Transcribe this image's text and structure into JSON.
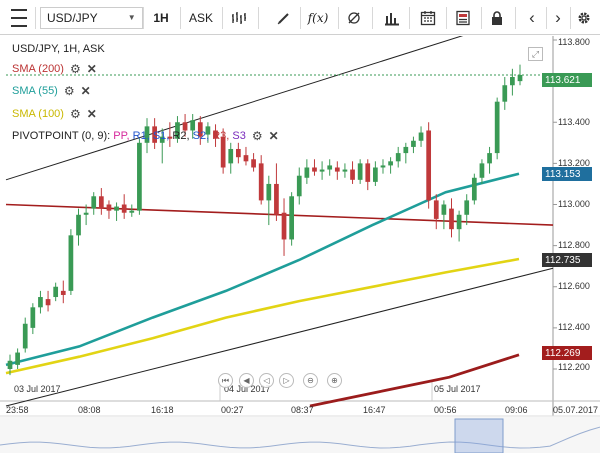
{
  "toolbar": {
    "symbol": "USD/JPY",
    "timeframe": "1H",
    "price_side": "ASK",
    "fx_label": "f(x)"
  },
  "legend": {
    "header": "USD/JPY, 1H, ASK",
    "sma200": "SMA (200)",
    "sma55": "SMA (55)",
    "sma100": "SMA (100)",
    "pivot_prefix": "PIVOTPOINT (0, 9):",
    "pivot_pp": "PP,",
    "pivot_r1": "R1,",
    "pivot_s1": "S1,",
    "pivot_r2": "R2,",
    "pivot_s2": "S2,",
    "pivot_r3": "R3,",
    "pivot_s3": "S3"
  },
  "y_axis": {
    "ticks": [
      "113.800",
      "113.400",
      "113.200",
      "113.000",
      "112.800",
      "112.600",
      "112.400",
      "112.200"
    ]
  },
  "price_tags": {
    "current": "113.621",
    "sma55": "113.153",
    "sma100": "112.735",
    "sma200": "112.269"
  },
  "x_axis": {
    "ticks": [
      "23:58",
      "08:08",
      "16:18",
      "00:27",
      "08:37",
      "16:47",
      "00:56",
      "09:06",
      "05.07.2017"
    ]
  },
  "day_labels": [
    "03 Jul 2017",
    "04 Jul 2017",
    "05 Jul 2017"
  ],
  "colors": {
    "bull": "#3a9a55",
    "bear": "#c0393b",
    "sma200": "#9b1c1c",
    "sma55": "#1f9e9a",
    "sma100": "#e2d414",
    "trendline": "#222222",
    "pivot_line": "#a31d1d",
    "current_tag": "#3a9a55",
    "sma55_tag": "#1f6f9e",
    "sma100_tag": "#333333",
    "sma200_tag": "#a31d1d",
    "pp": "#d6279c",
    "r1": "#2255cc",
    "s1": "#2255cc",
    "r3": "#c0393b",
    "s3": "#7a2bbd"
  },
  "chart_data": {
    "type": "candlestick",
    "instrument": "USD/JPY",
    "interval": "1H",
    "ylim": [
      112.17,
      113.82
    ],
    "candles": [
      {
        "o": 112.2,
        "h": 112.27,
        "l": 112.17,
        "c": 112.24
      },
      {
        "o": 112.22,
        "h": 112.3,
        "l": 112.2,
        "c": 112.28
      },
      {
        "o": 112.3,
        "h": 112.45,
        "l": 112.28,
        "c": 112.42
      },
      {
        "o": 112.4,
        "h": 112.52,
        "l": 112.37,
        "c": 112.5
      },
      {
        "o": 112.5,
        "h": 112.58,
        "l": 112.47,
        "c": 112.55
      },
      {
        "o": 112.54,
        "h": 112.58,
        "l": 112.48,
        "c": 112.51
      },
      {
        "o": 112.55,
        "h": 112.62,
        "l": 112.53,
        "c": 112.6
      },
      {
        "o": 112.58,
        "h": 112.63,
        "l": 112.52,
        "c": 112.56
      },
      {
        "o": 112.58,
        "h": 112.88,
        "l": 112.56,
        "c": 112.85
      },
      {
        "o": 112.85,
        "h": 112.98,
        "l": 112.8,
        "c": 112.95
      },
      {
        "o": 112.95,
        "h": 113.0,
        "l": 112.9,
        "c": 112.96
      },
      {
        "o": 112.98,
        "h": 113.06,
        "l": 112.95,
        "c": 113.04
      },
      {
        "o": 113.04,
        "h": 113.08,
        "l": 112.95,
        "c": 112.98
      },
      {
        "o": 113.0,
        "h": 113.02,
        "l": 112.93,
        "c": 112.97
      },
      {
        "o": 112.97,
        "h": 113.01,
        "l": 112.92,
        "c": 112.99
      },
      {
        "o": 113.0,
        "h": 113.05,
        "l": 112.93,
        "c": 112.96
      },
      {
        "o": 112.96,
        "h": 113.0,
        "l": 112.94,
        "c": 112.97
      },
      {
        "o": 112.97,
        "h": 113.32,
        "l": 112.95,
        "c": 113.3
      },
      {
        "o": 113.3,
        "h": 113.42,
        "l": 113.25,
        "c": 113.38
      },
      {
        "o": 113.38,
        "h": 113.42,
        "l": 113.27,
        "c": 113.3
      },
      {
        "o": 113.3,
        "h": 113.37,
        "l": 113.2,
        "c": 113.33
      },
      {
        "o": 113.33,
        "h": 113.4,
        "l": 113.28,
        "c": 113.32
      },
      {
        "o": 113.32,
        "h": 113.43,
        "l": 113.3,
        "c": 113.4
      },
      {
        "o": 113.4,
        "h": 113.44,
        "l": 113.33,
        "c": 113.36
      },
      {
        "o": 113.36,
        "h": 113.44,
        "l": 113.32,
        "c": 113.41
      },
      {
        "o": 113.4,
        "h": 113.43,
        "l": 113.29,
        "c": 113.33
      },
      {
        "o": 113.34,
        "h": 113.4,
        "l": 113.3,
        "c": 113.38
      },
      {
        "o": 113.36,
        "h": 113.39,
        "l": 113.28,
        "c": 113.32
      },
      {
        "o": 113.33,
        "h": 113.37,
        "l": 113.15,
        "c": 113.18
      },
      {
        "o": 113.2,
        "h": 113.3,
        "l": 113.15,
        "c": 113.27
      },
      {
        "o": 113.27,
        "h": 113.3,
        "l": 113.2,
        "c": 113.23
      },
      {
        "o": 113.24,
        "h": 113.28,
        "l": 113.19,
        "c": 113.21
      },
      {
        "o": 113.22,
        "h": 113.25,
        "l": 113.16,
        "c": 113.18
      },
      {
        "o": 113.2,
        "h": 113.24,
        "l": 113.0,
        "c": 113.02
      },
      {
        "o": 113.02,
        "h": 113.14,
        "l": 112.9,
        "c": 113.1
      },
      {
        "o": 113.1,
        "h": 113.2,
        "l": 112.92,
        "c": 112.95
      },
      {
        "o": 112.96,
        "h": 113.03,
        "l": 112.75,
        "c": 112.83
      },
      {
        "o": 112.83,
        "h": 113.06,
        "l": 112.8,
        "c": 113.04
      },
      {
        "o": 113.04,
        "h": 113.18,
        "l": 113.0,
        "c": 113.14
      },
      {
        "o": 113.13,
        "h": 113.22,
        "l": 113.1,
        "c": 113.18
      },
      {
        "o": 113.18,
        "h": 113.22,
        "l": 113.14,
        "c": 113.16
      },
      {
        "o": 113.16,
        "h": 113.21,
        "l": 113.12,
        "c": 113.17
      },
      {
        "o": 113.17,
        "h": 113.22,
        "l": 113.14,
        "c": 113.19
      },
      {
        "o": 113.18,
        "h": 113.21,
        "l": 113.12,
        "c": 113.16
      },
      {
        "o": 113.16,
        "h": 113.2,
        "l": 113.13,
        "c": 113.17
      },
      {
        "o": 113.17,
        "h": 113.21,
        "l": 113.1,
        "c": 113.12
      },
      {
        "o": 113.12,
        "h": 113.22,
        "l": 113.1,
        "c": 113.2
      },
      {
        "o": 113.2,
        "h": 113.22,
        "l": 113.07,
        "c": 113.11
      },
      {
        "o": 113.11,
        "h": 113.21,
        "l": 113.09,
        "c": 113.18
      },
      {
        "o": 113.18,
        "h": 113.22,
        "l": 113.15,
        "c": 113.19
      },
      {
        "o": 113.19,
        "h": 113.23,
        "l": 113.15,
        "c": 113.21
      },
      {
        "o": 113.21,
        "h": 113.28,
        "l": 113.18,
        "c": 113.25
      },
      {
        "o": 113.25,
        "h": 113.3,
        "l": 113.2,
        "c": 113.28
      },
      {
        "o": 113.28,
        "h": 113.33,
        "l": 113.25,
        "c": 113.31
      },
      {
        "o": 113.31,
        "h": 113.38,
        "l": 113.28,
        "c": 113.35
      },
      {
        "o": 113.36,
        "h": 113.4,
        "l": 112.98,
        "c": 113.02
      },
      {
        "o": 113.02,
        "h": 113.05,
        "l": 112.88,
        "c": 112.93
      },
      {
        "o": 112.95,
        "h": 113.02,
        "l": 112.88,
        "c": 113.0
      },
      {
        "o": 112.98,
        "h": 113.03,
        "l": 112.84,
        "c": 112.88
      },
      {
        "o": 112.88,
        "h": 112.97,
        "l": 112.82,
        "c": 112.95
      },
      {
        "o": 112.95,
        "h": 113.05,
        "l": 112.9,
        "c": 113.02
      },
      {
        "o": 113.02,
        "h": 113.15,
        "l": 113.0,
        "c": 113.13
      },
      {
        "o": 113.13,
        "h": 113.22,
        "l": 113.1,
        "c": 113.2
      },
      {
        "o": 113.2,
        "h": 113.28,
        "l": 113.15,
        "c": 113.25
      },
      {
        "o": 113.25,
        "h": 113.52,
        "l": 113.22,
        "c": 113.5
      },
      {
        "o": 113.5,
        "h": 113.62,
        "l": 113.46,
        "c": 113.58
      },
      {
        "o": 113.58,
        "h": 113.66,
        "l": 113.53,
        "c": 113.62
      },
      {
        "o": 113.6,
        "h": 113.68,
        "l": 113.58,
        "c": 113.63
      }
    ],
    "sma55": [
      112.22,
      112.31,
      112.45,
      112.58,
      112.73,
      112.9,
      113.06,
      113.15
    ],
    "sma100": [
      112.18,
      112.26,
      112.35,
      112.45,
      112.53,
      112.6,
      112.67,
      112.735
    ],
    "sma200": [
      112.02,
      112.09,
      112.16,
      112.269
    ],
    "pivot_level": [
      113.0,
      112.9
    ],
    "upper_trendline": [
      113.12,
      113.86
    ],
    "lower_trendline": [
      112.02,
      112.69
    ]
  }
}
